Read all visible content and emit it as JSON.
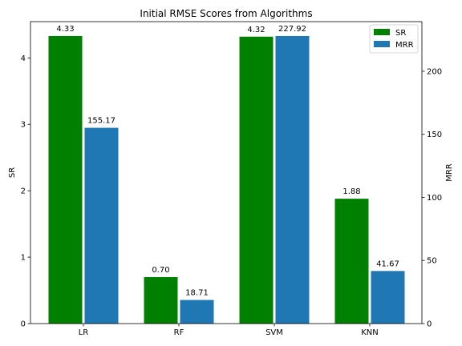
{
  "chart_data": {
    "type": "bar",
    "title": "Initial RMSE Scores from Algorithms",
    "categories": [
      "LR",
      "RF",
      "SVM",
      "KNN"
    ],
    "series": [
      {
        "name": "SR",
        "axis": "left",
        "color": "#008000",
        "values": [
          4.33,
          0.7,
          4.32,
          1.88
        ],
        "labels": [
          "4.33",
          "0.70",
          "4.32",
          "1.88"
        ]
      },
      {
        "name": "MRR",
        "axis": "right",
        "color": "#1f77b4",
        "values": [
          155.17,
          18.71,
          227.92,
          41.67
        ],
        "labels": [
          "155.17",
          "18.71",
          "227.92",
          "41.67"
        ]
      }
    ],
    "ylabel_left": "SR",
    "ylabel_right": "MRR",
    "ylim_left": [
      0,
      4.5465
    ],
    "ylim_right": [
      0,
      239.316
    ],
    "yticks_left": [
      "0",
      "1",
      "2",
      "3",
      "4"
    ],
    "yticks_right": [
      "0",
      "50",
      "100",
      "150",
      "200"
    ],
    "grid": false,
    "legend_position": "top-right"
  }
}
